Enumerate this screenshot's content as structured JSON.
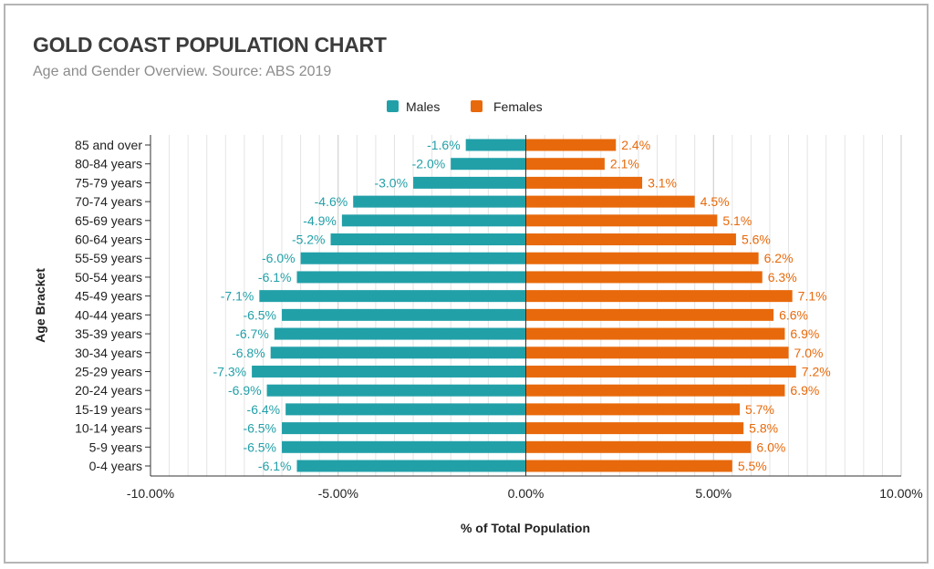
{
  "chart_data": {
    "type": "bar",
    "orientation": "horizontal",
    "title": "GOLD COAST POPULATION CHART",
    "subtitle": "Age and Gender Overview. Source: ABS 2019",
    "xlabel": "% of Total Population",
    "ylabel": "Age Bracket",
    "xlim": [
      -10,
      10
    ],
    "x_ticks": [
      "-10.00%",
      "-5.00%",
      "0.00%",
      "5.00%",
      "10.00%"
    ],
    "x_tick_values": [
      -10,
      -5,
      0,
      5,
      10
    ],
    "grid": true,
    "legend_placement": "top-center",
    "categories": [
      "85 and over",
      "80-84 years",
      "75-79 years",
      "70-74 years",
      "65-69 years",
      "60-64 years",
      "55-59 years",
      "50-54 years",
      "45-49 years",
      "40-44 years",
      "35-39 years",
      "30-34 years",
      "25-29 years",
      "20-24 years",
      "15-19 years",
      "10-14 years",
      "5-9 years",
      "0-4 years"
    ],
    "series": [
      {
        "name": "Males",
        "color": "#22a0a8",
        "values": [
          -1.6,
          -2.0,
          -3.0,
          -4.6,
          -4.9,
          -5.2,
          -6.0,
          -6.1,
          -7.1,
          -6.5,
          -6.7,
          -6.8,
          -7.3,
          -6.9,
          -6.4,
          -6.5,
          -6.5,
          -6.1
        ],
        "labels": [
          "-1.6%",
          "-2.0%",
          "-3.0%",
          "-4.6%",
          "-4.9%",
          "-5.2%",
          "-6.0%",
          "-6.1%",
          "-7.1%",
          "-6.5%",
          "-6.7%",
          "-6.8%",
          "-7.3%",
          "-6.9%",
          "-6.4%",
          "-6.5%",
          "-6.5%",
          "-6.1%"
        ]
      },
      {
        "name": "Females",
        "color": "#e8690b",
        "values": [
          2.4,
          2.1,
          3.1,
          4.5,
          5.1,
          5.6,
          6.2,
          6.3,
          7.1,
          6.6,
          6.9,
          7.0,
          7.2,
          6.9,
          5.7,
          5.8,
          6.0,
          5.5
        ],
        "labels": [
          "2.4%",
          "2.1%",
          "3.1%",
          "4.5%",
          "5.1%",
          "5.6%",
          "6.2%",
          "6.3%",
          "7.1%",
          "6.6%",
          "6.9%",
          "7.0%",
          "7.2%",
          "6.9%",
          "5.7%",
          "5.8%",
          "6.0%",
          "5.5%"
        ]
      }
    ]
  }
}
